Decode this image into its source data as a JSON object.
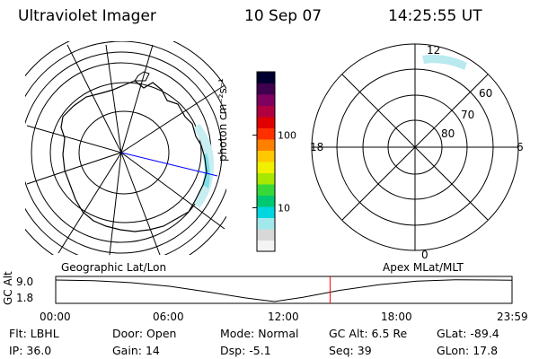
{
  "header": {
    "title": "Ultraviolet Imager",
    "date": "10 Sep 07",
    "time": "14:25:55 UT"
  },
  "colorbar": {
    "label": "photon cm⁻²s⁻¹",
    "ticks": [
      {
        "value": 100,
        "text": "100"
      },
      {
        "value": 10,
        "text": "10"
      }
    ],
    "scale": "log",
    "range": [
      2.5,
      750
    ],
    "colors": [
      "#f4f4f4",
      "#d8d8d8",
      "#a0e8ec",
      "#00d6e0",
      "#00c870",
      "#38d838",
      "#a8e800",
      "#f0f000",
      "#ffc800",
      "#ff8000",
      "#ff3000",
      "#e00000",
      "#b00040",
      "#800060",
      "#400050",
      "#000030"
    ]
  },
  "geo_map": {
    "caption": "Geographic Lat/Lon"
  },
  "polar_map": {
    "caption": "Apex MLat/MLT",
    "mlt_labels": [
      "12",
      "18",
      "6",
      "0"
    ],
    "mlat_labels": [
      "60",
      "70",
      "80"
    ]
  },
  "timeline": {
    "y_axis_label": "GC Alt",
    "y_ticks": [
      "9.0",
      "1.8"
    ],
    "x_ticks": [
      "00:00",
      "06:00",
      "12:00",
      "18:00",
      "23:59"
    ],
    "altitude_curve": {
      "x_hours": [
        0,
        2,
        4,
        6,
        8,
        10,
        11.5,
        13,
        15,
        17,
        19,
        21,
        23,
        24
      ],
      "alt_re": [
        9.0,
        8.8,
        8.1,
        6.9,
        5.0,
        3.0,
        1.8,
        3.2,
        5.6,
        7.4,
        8.6,
        9.1,
        9.0,
        8.9
      ]
    },
    "current_hour": 14.43,
    "colors": {
      "curve": "#000000",
      "marker": "#ff0000"
    }
  },
  "info": {
    "row1": [
      {
        "key": "Flt:",
        "value": "LBHL"
      },
      {
        "key": "Door:",
        "value": "Open"
      },
      {
        "key": "Mode:",
        "value": "Normal"
      },
      {
        "key": "GC Alt:",
        "value": "6.5 Re"
      },
      {
        "key": "GLat:",
        "value": "-89.4"
      }
    ],
    "row2": [
      {
        "key": "IP:",
        "value": "36.0"
      },
      {
        "key": "Gain:",
        "value": "14"
      },
      {
        "key": "Dsp:",
        "value": "-5.1"
      },
      {
        "key": "Seq:",
        "value": "39"
      },
      {
        "key": "GLon:",
        "value": "17.8"
      }
    ]
  }
}
